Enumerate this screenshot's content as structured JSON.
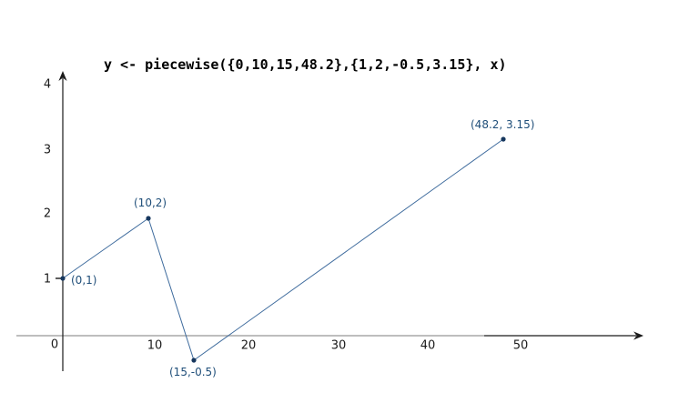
{
  "chart_data": {
    "type": "line",
    "title": "y <- piecewise({0,10,15,48.2},{1,2,-0.5,3.15}, x)",
    "xlabel": "",
    "ylabel": "",
    "x": [
      0,
      10,
      15,
      48.2
    ],
    "y": [
      1,
      2,
      -0.5,
      3.15
    ],
    "points": [
      {
        "x": 0,
        "y": 1,
        "label": "(0,1)"
      },
      {
        "x": 10,
        "y": 2,
        "label": "(10,2)"
      },
      {
        "x": 15,
        "y": -0.5,
        "label": "(15,-0.5)"
      },
      {
        "x": 48.2,
        "y": 3.15,
        "label": "(48.2, 3.15)"
      }
    ],
    "x_tick_labels": [
      "0",
      "10",
      "20",
      "30",
      "40",
      "50"
    ],
    "y_tick_labels": [
      "4",
      "3",
      "2",
      "1"
    ],
    "xlim": [
      -5,
      64
    ],
    "ylim": [
      -1,
      4.3
    ],
    "grid": false,
    "legend": null,
    "colors": {
      "series_line": "#3e6b9d",
      "point_fill": "#17375e",
      "point_label_text": "#1f4e79",
      "x_axis": "#a9a9a9",
      "x_axis_end": "#1a1a1a",
      "y_axis": "#1a1a1a",
      "tick_text": "#1a1a1a",
      "title_text": "#000000"
    }
  }
}
